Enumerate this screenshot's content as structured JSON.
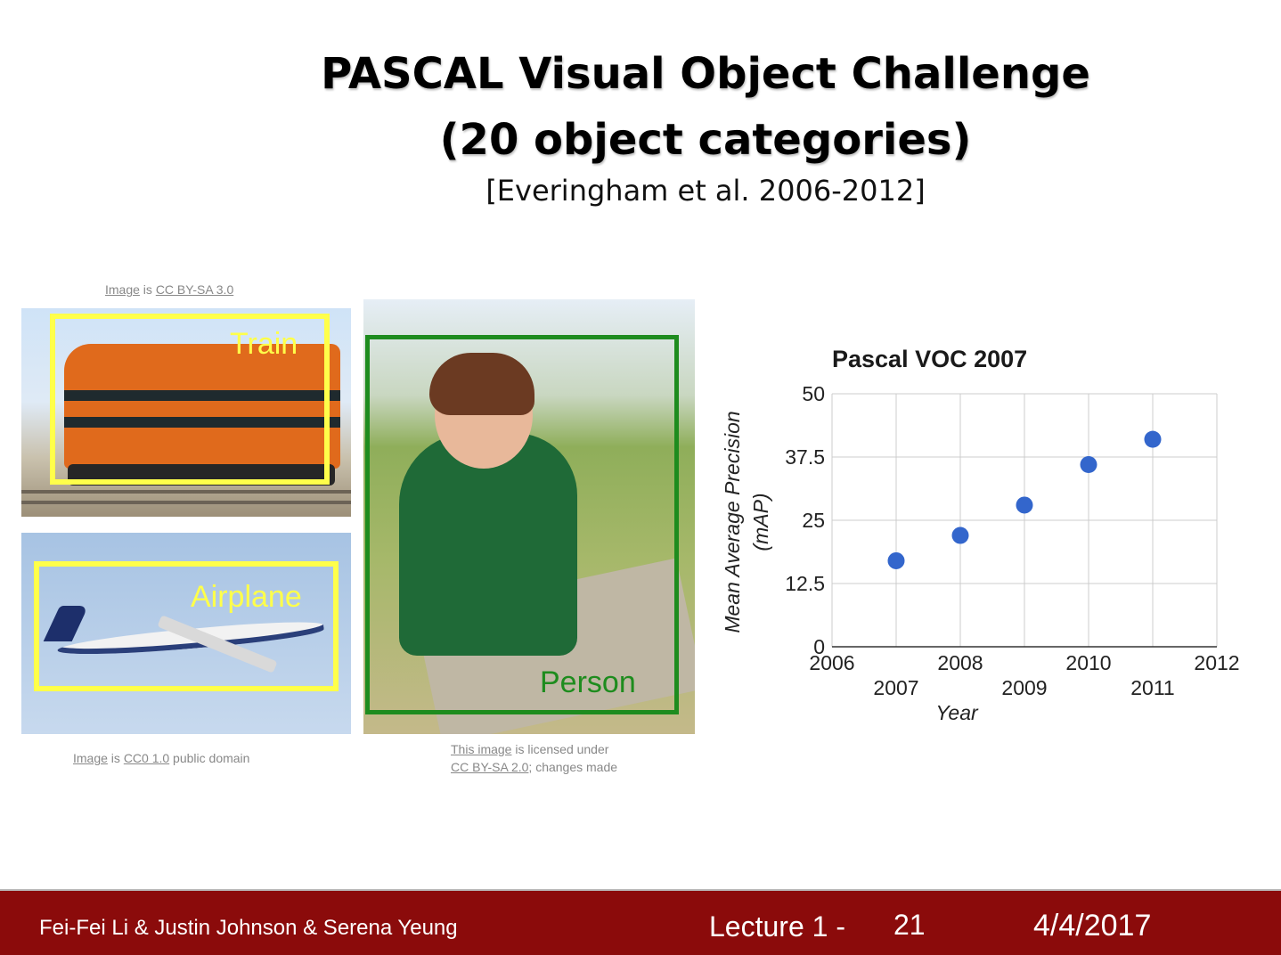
{
  "slide": {
    "title_line1": "PASCAL Visual Object Challenge",
    "title_line2": "(20 object categories)",
    "citation": "[Everingham et al. 2006-2012]"
  },
  "images": {
    "train": {
      "credit_link": "Image",
      "credit_mid": " is ",
      "credit_license": "CC BY-SA 3.0",
      "label": "Train",
      "label_color": "#ffff4a"
    },
    "airplane": {
      "credit_link": "Image",
      "credit_mid": " is ",
      "credit_license": "CC0 1.0",
      "credit_tail": " public domain",
      "label": "Airplane",
      "label_color": "#ffff4a"
    },
    "person": {
      "credit_link": "This image",
      "credit_mid": " is licensed under",
      "credit_license": "CC BY-SA 2.0",
      "credit_tail": "; changes made",
      "label": "Person",
      "label_color": "#1e8c1e"
    }
  },
  "chart_data": {
    "type": "scatter",
    "title": "Pascal VOC 2007",
    "xlabel": "Year",
    "ylabel_line1": "Mean Average Precision",
    "ylabel_line2": "(mAP)",
    "xlim": [
      2006,
      2012
    ],
    "ylim": [
      0,
      50
    ],
    "xticks_top": [
      "2006",
      "2008",
      "2010",
      "2012"
    ],
    "xticks_bottom": [
      "2007",
      "2009",
      "2011"
    ],
    "yticks": [
      "0",
      "12.5",
      "25",
      "37.5",
      "50"
    ],
    "grid": true,
    "point_color": "#3366cc",
    "x": [
      2007,
      2008,
      2009,
      2010,
      2011
    ],
    "y": [
      17,
      22,
      28,
      36,
      41
    ]
  },
  "footer": {
    "authors": "Fei-Fei Li & Justin Johnson & Serena Yeung",
    "lecture": "Lecture 1 -",
    "slide_number": "21",
    "date": "4/4/2017"
  }
}
